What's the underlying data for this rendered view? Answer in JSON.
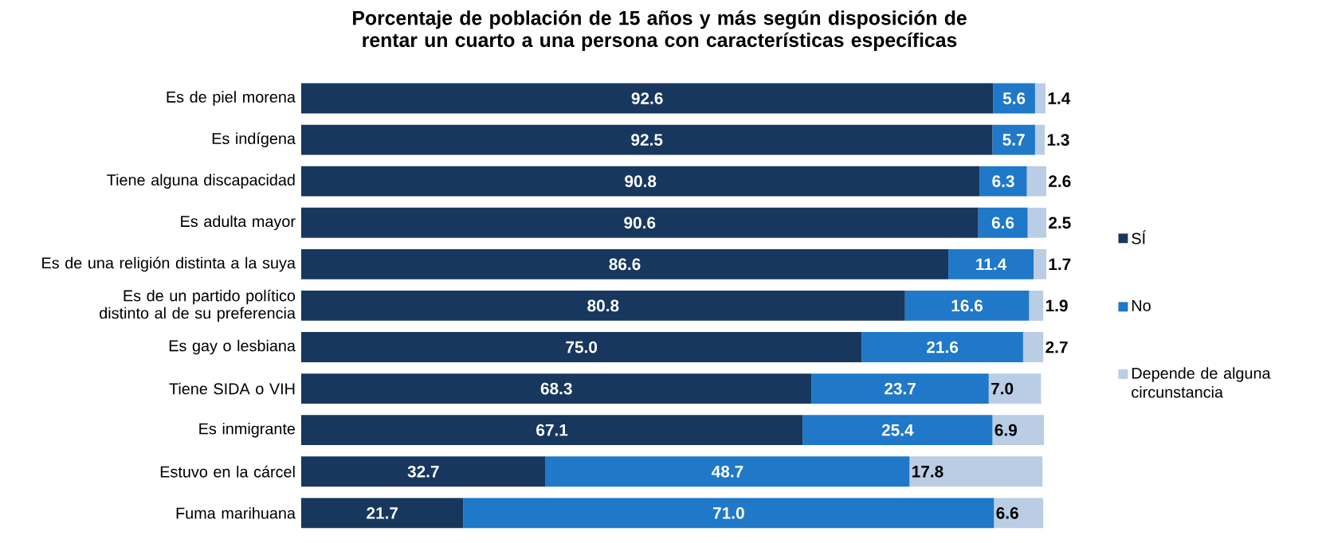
{
  "chart_data": {
    "type": "bar",
    "orientation": "horizontal",
    "stacked": true,
    "legend": "right",
    "title": "Porcentaje de población de 15 años y más según disposición de rentar un cuarto a una persona con características específicas",
    "categories": [
      "Es de piel morena",
      "Es indígena",
      "Tiene alguna discapacidad",
      "Es adulta mayor",
      "Es de una religión distinta a la suya",
      "Es de un partido político distinto al de su preferencia",
      "Es gay o lesbiana",
      "Tiene SIDA o VIH",
      "Es inmigrante",
      "Estuvo en la cárcel",
      "Fuma marihuana"
    ],
    "series": [
      {
        "name": "SÍ",
        "color": "#17375e",
        "values": [
          92.6,
          92.5,
          90.8,
          90.6,
          86.6,
          80.8,
          75.0,
          68.3,
          67.1,
          32.7,
          21.7
        ],
        "value_labels": [
          "92.6",
          "92.5",
          "90.8",
          "90.6",
          "86.6",
          "80.8",
          "75.0",
          "68.3",
          "67.1",
          "32.7",
          "21.7"
        ]
      },
      {
        "name": "No",
        "color": "#1f78c8",
        "values": [
          5.6,
          5.7,
          6.3,
          6.6,
          11.4,
          16.6,
          21.6,
          23.7,
          25.4,
          48.7,
          71.0
        ],
        "value_labels": [
          "5.6",
          "5.7",
          "6.3",
          "6.6",
          "11.4",
          "16.6",
          "21.6",
          "23.7",
          "25.4",
          "48.7",
          "71.0"
        ]
      },
      {
        "name": "Depende de alguna circunstancia",
        "color": "#b9cde5",
        "values": [
          1.4,
          1.3,
          2.6,
          2.5,
          1.7,
          1.9,
          2.7,
          7.0,
          6.9,
          17.8,
          6.6
        ],
        "value_labels": [
          "1.4",
          "1.3",
          "2.6",
          "2.5",
          "1.7",
          "1.9",
          "2.7",
          "7.0",
          "6.9",
          "17.8",
          "6.6"
        ]
      }
    ]
  }
}
